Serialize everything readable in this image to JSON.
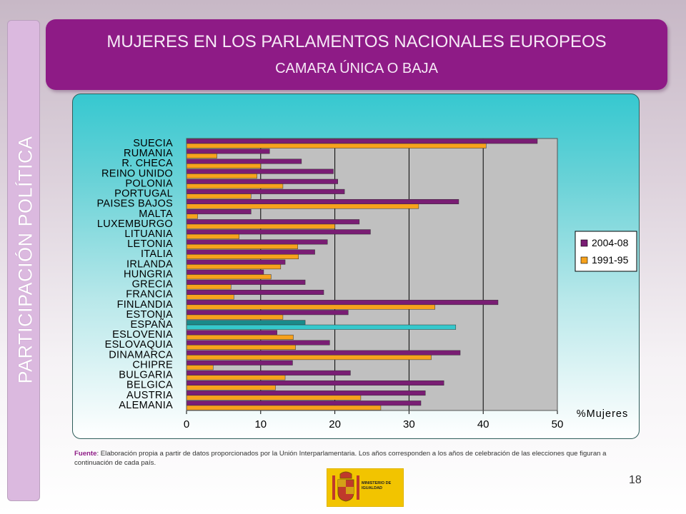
{
  "side_label": "PARTICIPACIÓN POLÍTICA",
  "header": {
    "title": "MUJERES EN LOS PARLAMENTOS  NACIONALES EUROPEOS",
    "subtitle": "CAMARA ÚNICA O BAJA"
  },
  "footer": {
    "source_label": "Fuente",
    "source_text": ": Elaboración propia a partir de datos proporcionados por la Unión Interparlamentaria. Los años corresponden a los años de celebración de las elecciones que figuran a continuación de cada país.",
    "page_number": "18",
    "logo_text": "MINISTERIO DE IGUALDAD"
  },
  "colors": {
    "series_2004": "#7a1d74",
    "series_1991": "#f7a21c",
    "highlight_2004": "#1a8a8a",
    "highlight_1991": "#35c8cc",
    "plot_bg": "#c0c0c0"
  },
  "chart_data": {
    "type": "bar",
    "orientation": "horizontal",
    "xlabel": "%Mujeres",
    "xlim": [
      0,
      50
    ],
    "xticks": [
      0,
      10,
      20,
      30,
      40,
      50
    ],
    "grid": "vertical",
    "legend": "right",
    "highlight_category": "ESPAÑA",
    "categories": [
      "SUECIA",
      "RUMANIA",
      "R. CHECA",
      "REINO UNIDO",
      "POLONIA",
      "PORTUGAL",
      "PAISES BAJOS",
      "MALTA",
      "LUXEMBURGO",
      "LITUANIA",
      "LETONIA",
      "ITALIA",
      "IRLANDA",
      "HUNGRIA",
      "GRECIA",
      "FRANCIA",
      "FINLANDIA",
      "ESTONIA",
      "ESPAÑA",
      "ESLOVENIA",
      "ESLOVAQUIA",
      "DINAMARCA",
      "CHIPRE",
      "BULGARIA",
      "BELGICA",
      "AUSTRIA",
      "ALEMANIA"
    ],
    "series": [
      {
        "name": "2004-08",
        "values": [
          47.3,
          11.2,
          15.5,
          19.8,
          20.4,
          21.3,
          36.7,
          8.7,
          23.3,
          24.8,
          19.0,
          17.3,
          13.3,
          10.4,
          16.0,
          18.5,
          42.0,
          21.8,
          16.0,
          12.2,
          19.3,
          36.9,
          14.3,
          22.1,
          34.7,
          32.2,
          31.6
        ]
      },
      {
        "name": "1991-95",
        "values": [
          40.4,
          4.1,
          10.0,
          9.5,
          13.0,
          8.7,
          31.3,
          1.5,
          20.0,
          7.1,
          15.0,
          15.1,
          12.7,
          11.4,
          6.0,
          6.4,
          33.5,
          13.0,
          36.3,
          14.4,
          14.7,
          33.0,
          3.6,
          13.3,
          12.0,
          23.5,
          26.2
        ]
      }
    ]
  }
}
